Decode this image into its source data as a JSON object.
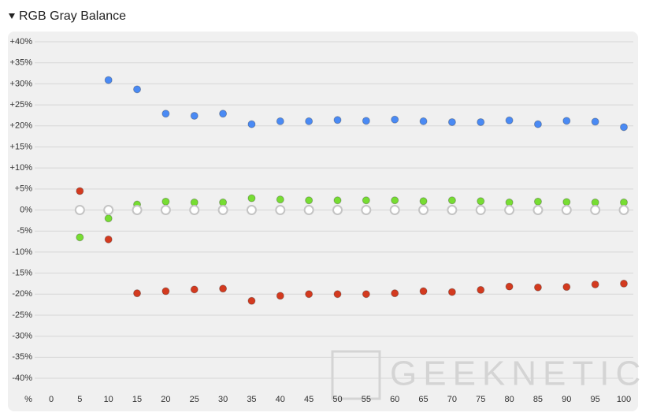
{
  "chart_data": {
    "type": "scatter",
    "title": "RGB Gray Balance",
    "x_label": "%",
    "watermark": "GEEKNETIC",
    "xlim": [
      0,
      100
    ],
    "xticks": [
      0,
      5,
      10,
      15,
      20,
      25,
      30,
      35,
      40,
      45,
      50,
      55,
      60,
      65,
      70,
      75,
      80,
      85,
      90,
      95,
      100
    ],
    "ylim": [
      -40,
      40
    ],
    "yticks": [
      {
        "value": 40,
        "label": "+40%"
      },
      {
        "value": 35,
        "label": "+35%"
      },
      {
        "value": 30,
        "label": "+30%"
      },
      {
        "value": 25,
        "label": "+25%"
      },
      {
        "value": 20,
        "label": "+20%"
      },
      {
        "value": 15,
        "label": "+15%"
      },
      {
        "value": 10,
        "label": "+10%"
      },
      {
        "value": 5,
        "label": "+5%"
      },
      {
        "value": 0,
        "label": "0%"
      },
      {
        "value": -5,
        "label": "-5%"
      },
      {
        "value": -10,
        "label": "-10%"
      },
      {
        "value": -15,
        "label": "-15%"
      },
      {
        "value": -20,
        "label": "-20%"
      },
      {
        "value": -25,
        "label": "-25%"
      },
      {
        "value": -30,
        "label": "-30%"
      },
      {
        "value": -35,
        "label": "-35%"
      },
      {
        "value": -40,
        "label": "-40%"
      }
    ],
    "grid": true,
    "series": [
      {
        "color": "#4a8af4",
        "x": [
          10,
          15,
          20,
          25,
          30,
          35,
          40,
          45,
          50,
          55,
          60,
          65,
          70,
          75,
          80,
          85,
          90,
          95,
          100
        ],
        "values": [
          30.9,
          28.7,
          22.9,
          22.4,
          22.9,
          20.4,
          21.1,
          21.1,
          21.4,
          21.2,
          21.5,
          21.1,
          20.9,
          20.9,
          21.3,
          20.4,
          21.2,
          21.0,
          19.7
        ]
      },
      {
        "color": "#77dd33",
        "x": [
          5,
          10,
          15,
          20,
          25,
          30,
          35,
          40,
          45,
          50,
          55,
          60,
          65,
          70,
          75,
          80,
          85,
          90,
          95,
          100
        ],
        "values": [
          -6.5,
          -2.0,
          1.3,
          2.0,
          1.8,
          1.8,
          2.8,
          2.5,
          2.3,
          2.3,
          2.3,
          2.3,
          2.1,
          2.3,
          2.1,
          1.8,
          2.0,
          1.9,
          1.8,
          1.8
        ]
      },
      {
        "color": "#d33a1f",
        "x": [
          5,
          10,
          15,
          20,
          25,
          30,
          35,
          40,
          45,
          50,
          55,
          60,
          65,
          70,
          75,
          80,
          85,
          90,
          95,
          100
        ],
        "values": [
          4.5,
          -7.0,
          -19.8,
          -19.3,
          -18.9,
          -18.7,
          -21.6,
          -20.4,
          -20.0,
          -20.0,
          -20.0,
          -19.8,
          -19.3,
          -19.5,
          -19.0,
          -18.2,
          -18.4,
          -18.3,
          -17.7,
          -17.5
        ]
      },
      {
        "color": "#ffffff",
        "x": [
          5,
          10,
          15,
          20,
          25,
          30,
          35,
          40,
          45,
          50,
          55,
          60,
          65,
          70,
          75,
          80,
          85,
          90,
          95,
          100
        ],
        "values": [
          0,
          0,
          0,
          0,
          0,
          0,
          0,
          0,
          0,
          0,
          0,
          0,
          0,
          0,
          0,
          0,
          0,
          0,
          0,
          0
        ]
      }
    ]
  }
}
